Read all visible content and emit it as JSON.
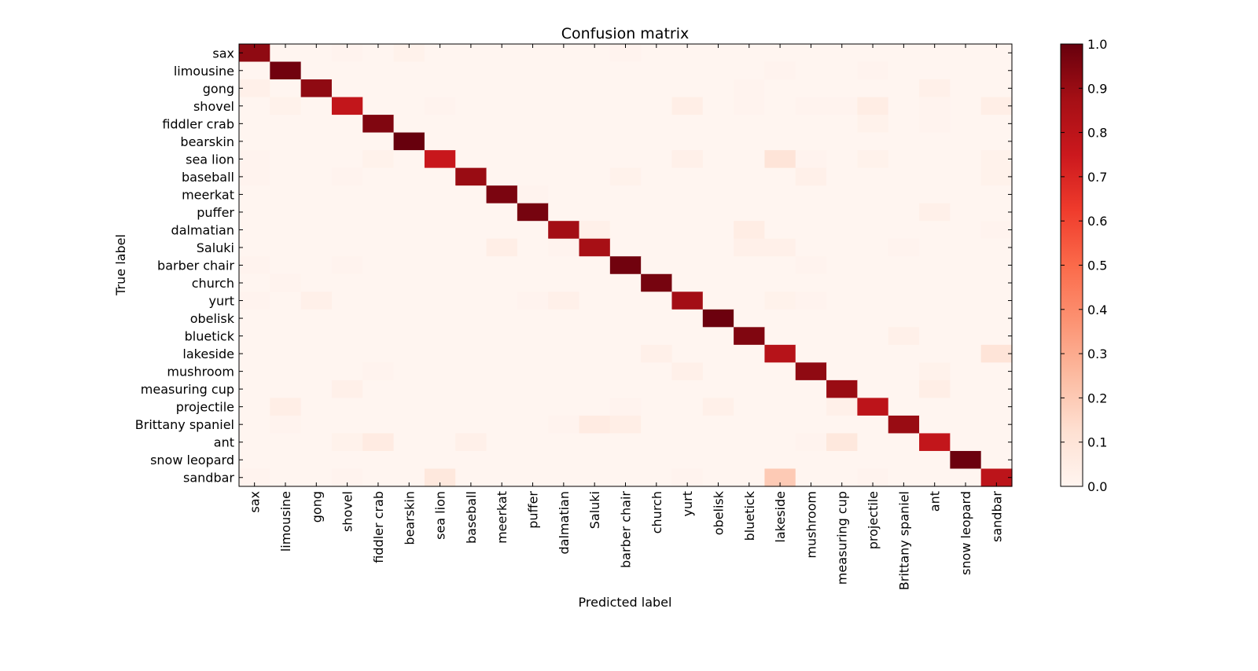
{
  "chart_data": {
    "type": "heatmap",
    "title": "Confusion matrix",
    "xlabel": "Predicted label",
    "ylabel": "True label",
    "colormap": "Reds",
    "vmin": 0.0,
    "vmax": 1.0,
    "colorbar_ticks": [
      "0.0",
      "0.1",
      "0.2",
      "0.3",
      "0.4",
      "0.5",
      "0.6",
      "0.7",
      "0.8",
      "0.9",
      "1.0"
    ],
    "categories": [
      "sax",
      "limousine",
      "gong",
      "shovel",
      "fiddler crab",
      "bearskin",
      "sea lion",
      "baseball",
      "meerkat",
      "puffer",
      "dalmatian",
      "Saluki",
      "barber chair",
      "church",
      "yurt",
      "obelisk",
      "bluetick",
      "lakeside",
      "mushroom",
      "measuring cup",
      "projectile",
      "Brittany spaniel",
      "ant",
      "snow leopard",
      "sandbar"
    ],
    "x_tick_labels": [
      "sax",
      "limousine",
      "gong",
      "shovel",
      "fiddler crab",
      "bearskin",
      "sea lion",
      "baseball",
      "meerkat",
      "puffer",
      "dalmatian",
      "Saluki",
      "barber chair",
      "church",
      "yurt",
      "obelisk",
      "bluetick",
      "lakeside",
      "mushroom",
      "measuring cup",
      "projectile",
      "Brittany spaniel",
      "ant",
      "snow leopard",
      "sandbar"
    ],
    "y_tick_labels": [
      "sax",
      "limousine",
      "gong",
      "shovel",
      "fiddler crab",
      "bearskin",
      "sea lion",
      "baseball",
      "meerkat",
      "puffer",
      "dalmatian",
      "Saluki",
      "barber chair",
      "church",
      "yurt",
      "obelisk",
      "bluetick",
      "lakeside",
      "mushroom",
      "measuring cup",
      "projectile",
      "Brittany spaniel",
      "ant",
      "snow leopard",
      "sandbar"
    ],
    "matrix": [
      [
        0.92,
        0.0,
        0.0,
        0.01,
        0.0,
        0.02,
        0.0,
        0.0,
        0.0,
        0.0,
        0.0,
        0.0,
        0.01,
        0.0,
        0.0,
        0.0,
        0.0,
        0.0,
        0.0,
        0.0,
        0.0,
        0.0,
        0.0,
        0.0,
        0.0
      ],
      [
        0.0,
        0.98,
        0.0,
        0.0,
        0.0,
        0.0,
        0.0,
        0.0,
        0.0,
        0.0,
        0.0,
        0.0,
        0.0,
        0.0,
        0.0,
        0.0,
        0.0,
        0.01,
        0.0,
        0.0,
        0.01,
        0.0,
        0.0,
        0.0,
        0.0
      ],
      [
        0.03,
        0.0,
        0.92,
        0.0,
        0.0,
        0.0,
        0.0,
        0.0,
        0.0,
        0.0,
        0.0,
        0.0,
        0.0,
        0.0,
        0.0,
        0.0,
        0.01,
        0.0,
        0.0,
        0.0,
        0.0,
        0.0,
        0.03,
        0.0,
        0.0
      ],
      [
        0.0,
        0.02,
        0.0,
        0.78,
        0.0,
        0.0,
        0.01,
        0.0,
        0.0,
        0.0,
        0.0,
        0.0,
        0.0,
        0.0,
        0.04,
        0.0,
        0.01,
        0.0,
        0.01,
        0.01,
        0.05,
        0.0,
        0.01,
        0.0,
        0.04
      ],
      [
        0.0,
        0.0,
        0.0,
        0.0,
        0.95,
        0.0,
        0.0,
        0.0,
        0.0,
        0.0,
        0.0,
        0.0,
        0.0,
        0.0,
        0.0,
        0.0,
        0.0,
        0.0,
        0.0,
        0.0,
        0.02,
        0.0,
        0.01,
        0.0,
        0.0
      ],
      [
        0.0,
        0.0,
        0.0,
        0.0,
        0.0,
        1.0,
        0.0,
        0.0,
        0.0,
        0.0,
        0.0,
        0.0,
        0.0,
        0.0,
        0.0,
        0.0,
        0.0,
        0.0,
        0.0,
        0.0,
        0.0,
        0.0,
        0.0,
        0.0,
        0.0
      ],
      [
        0.01,
        0.0,
        0.0,
        0.0,
        0.02,
        0.0,
        0.76,
        0.0,
        0.0,
        0.0,
        0.0,
        0.0,
        0.0,
        0.0,
        0.03,
        0.0,
        0.0,
        0.1,
        0.01,
        0.0,
        0.02,
        0.0,
        0.0,
        0.0,
        0.02
      ],
      [
        0.01,
        0.0,
        0.0,
        0.01,
        0.0,
        0.0,
        0.0,
        0.9,
        0.0,
        0.0,
        0.0,
        0.0,
        0.02,
        0.0,
        0.0,
        0.0,
        0.0,
        0.0,
        0.03,
        0.0,
        0.0,
        0.0,
        0.0,
        0.0,
        0.02
      ],
      [
        0.0,
        0.0,
        0.0,
        0.0,
        0.0,
        0.0,
        0.0,
        0.0,
        0.96,
        0.01,
        0.0,
        0.0,
        0.0,
        0.0,
        0.0,
        0.0,
        0.0,
        0.0,
        0.0,
        0.0,
        0.0,
        0.0,
        0.0,
        0.0,
        0.0
      ],
      [
        0.0,
        0.0,
        0.0,
        0.0,
        0.0,
        0.0,
        0.0,
        0.0,
        0.0,
        0.97,
        0.0,
        0.0,
        0.0,
        0.0,
        0.0,
        0.0,
        0.0,
        0.0,
        0.0,
        0.0,
        0.0,
        0.0,
        0.03,
        0.0,
        0.0
      ],
      [
        0.0,
        0.0,
        0.0,
        0.0,
        0.0,
        0.0,
        0.0,
        0.0,
        0.0,
        0.0,
        0.88,
        0.03,
        0.0,
        0.0,
        0.0,
        0.0,
        0.05,
        0.0,
        0.0,
        0.0,
        0.0,
        0.0,
        0.0,
        0.0,
        0.01
      ],
      [
        0.0,
        0.0,
        0.0,
        0.0,
        0.0,
        0.0,
        0.0,
        0.0,
        0.04,
        0.0,
        0.01,
        0.87,
        0.0,
        0.0,
        0.0,
        0.0,
        0.03,
        0.03,
        0.0,
        0.0,
        0.0,
        0.01,
        0.0,
        0.0,
        0.0
      ],
      [
        0.01,
        0.0,
        0.0,
        0.01,
        0.0,
        0.0,
        0.0,
        0.0,
        0.0,
        0.0,
        0.0,
        0.0,
        0.98,
        0.0,
        0.0,
        0.0,
        0.0,
        0.0,
        0.01,
        0.0,
        0.0,
        0.0,
        0.0,
        0.0,
        0.0
      ],
      [
        0.0,
        0.01,
        0.0,
        0.0,
        0.0,
        0.0,
        0.0,
        0.0,
        0.0,
        0.0,
        0.0,
        0.0,
        0.0,
        0.97,
        0.0,
        0.0,
        0.0,
        0.0,
        0.0,
        0.0,
        0.0,
        0.0,
        0.0,
        0.0,
        0.0
      ],
      [
        0.01,
        0.0,
        0.03,
        0.0,
        0.0,
        0.0,
        0.0,
        0.0,
        0.0,
        0.01,
        0.03,
        0.0,
        0.0,
        0.0,
        0.88,
        0.0,
        0.0,
        0.02,
        0.01,
        0.0,
        0.0,
        0.0,
        0.0,
        0.0,
        0.0
      ],
      [
        0.0,
        0.0,
        0.0,
        0.0,
        0.0,
        0.0,
        0.0,
        0.0,
        0.0,
        0.0,
        0.0,
        0.0,
        0.0,
        0.0,
        0.0,
        0.99,
        0.0,
        0.0,
        0.0,
        0.0,
        0.0,
        0.0,
        0.0,
        0.0,
        0.0
      ],
      [
        0.0,
        0.0,
        0.0,
        0.0,
        0.0,
        0.0,
        0.0,
        0.0,
        0.0,
        0.0,
        0.0,
        0.0,
        0.0,
        0.0,
        0.0,
        0.0,
        0.95,
        0.0,
        0.0,
        0.0,
        0.0,
        0.03,
        0.0,
        0.0,
        0.0
      ],
      [
        0.0,
        0.0,
        0.0,
        0.0,
        0.0,
        0.0,
        0.0,
        0.0,
        0.0,
        0.0,
        0.0,
        0.0,
        0.0,
        0.03,
        0.0,
        0.0,
        0.0,
        0.82,
        0.0,
        0.0,
        0.0,
        0.0,
        0.0,
        0.0,
        0.1
      ],
      [
        0.0,
        0.0,
        0.0,
        0.0,
        0.01,
        0.0,
        0.0,
        0.0,
        0.0,
        0.0,
        0.0,
        0.0,
        0.0,
        0.0,
        0.03,
        0.0,
        0.0,
        0.0,
        0.92,
        0.0,
        0.0,
        0.0,
        0.02,
        0.0,
        0.0
      ],
      [
        0.0,
        0.0,
        0.0,
        0.03,
        0.0,
        0.0,
        0.0,
        0.0,
        0.0,
        0.0,
        0.0,
        0.0,
        0.0,
        0.0,
        0.0,
        0.0,
        0.0,
        0.0,
        0.0,
        0.9,
        0.0,
        0.0,
        0.04,
        0.0,
        0.0
      ],
      [
        0.0,
        0.04,
        0.0,
        0.0,
        0.0,
        0.0,
        0.0,
        0.0,
        0.0,
        0.0,
        0.0,
        0.0,
        0.01,
        0.0,
        0.0,
        0.03,
        0.0,
        0.0,
        0.0,
        0.03,
        0.8,
        0.0,
        0.0,
        0.0,
        0.0
      ],
      [
        0.0,
        0.01,
        0.0,
        0.0,
        0.0,
        0.0,
        0.0,
        0.0,
        0.0,
        0.0,
        0.01,
        0.06,
        0.04,
        0.0,
        0.0,
        0.0,
        0.0,
        0.0,
        0.0,
        0.0,
        0.0,
        0.9,
        0.0,
        0.0,
        0.0
      ],
      [
        0.0,
        0.0,
        0.0,
        0.02,
        0.06,
        0.0,
        0.0,
        0.03,
        0.0,
        0.0,
        0.0,
        0.0,
        0.0,
        0.0,
        0.0,
        0.0,
        0.0,
        0.0,
        0.01,
        0.08,
        0.0,
        0.0,
        0.78,
        0.0,
        0.0
      ],
      [
        0.0,
        0.0,
        0.0,
        0.0,
        0.0,
        0.0,
        0.0,
        0.0,
        0.0,
        0.0,
        0.0,
        0.0,
        0.0,
        0.0,
        0.0,
        0.0,
        0.0,
        0.0,
        0.0,
        0.0,
        0.0,
        0.0,
        0.0,
        0.99,
        0.0
      ],
      [
        0.01,
        0.0,
        0.0,
        0.01,
        0.0,
        0.0,
        0.08,
        0.0,
        0.0,
        0.0,
        0.0,
        0.0,
        0.0,
        0.0,
        0.01,
        0.0,
        0.0,
        0.2,
        0.0,
        0.0,
        0.01,
        0.0,
        0.0,
        0.0,
        0.8
      ]
    ]
  }
}
